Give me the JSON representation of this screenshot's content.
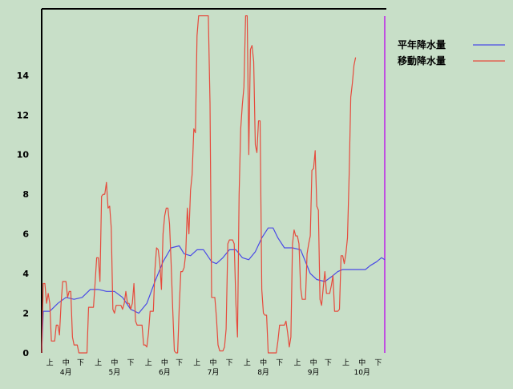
{
  "chart_data": {
    "type": "line",
    "title": "",
    "xlabel": "",
    "ylabel": "",
    "ylim": [
      0,
      17
    ],
    "yticks": [
      0,
      2,
      4,
      6,
      8,
      10,
      12,
      14
    ],
    "xlim": [
      0,
      213
    ],
    "x_tick_labels": [
      {
        "x": 5,
        "label": "上"
      },
      {
        "x": 15,
        "label": "中"
      },
      {
        "x": 24,
        "label": "下"
      },
      {
        "x": 35,
        "label": "上"
      },
      {
        "x": 45,
        "label": "中"
      },
      {
        "x": 55,
        "label": "下"
      },
      {
        "x": 66,
        "label": "上"
      },
      {
        "x": 76,
        "label": "中"
      },
      {
        "x": 85,
        "label": "下"
      },
      {
        "x": 96,
        "label": "上"
      },
      {
        "x": 106,
        "label": "中"
      },
      {
        "x": 116,
        "label": "下"
      },
      {
        "x": 127,
        "label": "上"
      },
      {
        "x": 137,
        "label": "中"
      },
      {
        "x": 147,
        "label": "下"
      },
      {
        "x": 158,
        "label": "上"
      },
      {
        "x": 168,
        "label": "中"
      },
      {
        "x": 177,
        "label": "下"
      },
      {
        "x": 188,
        "label": "上"
      },
      {
        "x": 198,
        "label": "中"
      },
      {
        "x": 208,
        "label": "下"
      }
    ],
    "month_labels": [
      {
        "x": 15,
        "label": "4月"
      },
      {
        "x": 45,
        "label": "5月"
      },
      {
        "x": 76,
        "label": "6月"
      },
      {
        "x": 106,
        "label": "7月"
      },
      {
        "x": 137,
        "label": "8月"
      },
      {
        "x": 168,
        "label": "9月"
      },
      {
        "x": 198,
        "label": "10月"
      }
    ],
    "current_marker_x": 212,
    "legend_position": "top-right",
    "series": [
      {
        "name": "平年降水量",
        "color": "#4a4ae6",
        "points": [
          [
            0,
            0
          ],
          [
            1,
            2.1
          ],
          [
            5,
            2.1
          ],
          [
            10,
            2.5
          ],
          [
            15,
            2.8
          ],
          [
            20,
            2.7
          ],
          [
            25,
            2.8
          ],
          [
            30,
            3.2
          ],
          [
            35,
            3.2
          ],
          [
            40,
            3.1
          ],
          [
            45,
            3.1
          ],
          [
            50,
            2.8
          ],
          [
            55,
            2.2
          ],
          [
            60,
            2.0
          ],
          [
            65,
            2.5
          ],
          [
            70,
            3.6
          ],
          [
            75,
            4.6
          ],
          [
            80,
            5.3
          ],
          [
            85,
            5.4
          ],
          [
            88,
            5.0
          ],
          [
            92,
            4.9
          ],
          [
            96,
            5.2
          ],
          [
            100,
            5.2
          ],
          [
            105,
            4.6
          ],
          [
            108,
            4.5
          ],
          [
            112,
            4.8
          ],
          [
            116,
            5.2
          ],
          [
            120,
            5.2
          ],
          [
            124,
            4.8
          ],
          [
            128,
            4.7
          ],
          [
            132,
            5.1
          ],
          [
            136,
            5.8
          ],
          [
            140,
            6.3
          ],
          [
            143,
            6.3
          ],
          [
            146,
            5.8
          ],
          [
            150,
            5.3
          ],
          [
            155,
            5.3
          ],
          [
            160,
            5.2
          ],
          [
            163,
            4.6
          ],
          [
            166,
            4.0
          ],
          [
            170,
            3.7
          ],
          [
            175,
            3.6
          ],
          [
            180,
            3.9
          ],
          [
            183,
            4.1
          ],
          [
            186,
            4.2
          ],
          [
            195,
            4.2
          ],
          [
            200,
            4.2
          ],
          [
            203,
            4.4
          ],
          [
            207,
            4.6
          ],
          [
            210,
            4.8
          ],
          [
            212,
            4.7
          ]
        ]
      },
      {
        "name": "移動降水量",
        "color": "#e64a3c",
        "points": [
          [
            0,
            0
          ],
          [
            1,
            3.5
          ],
          [
            2,
            3.5
          ],
          [
            3,
            2.5
          ],
          [
            4,
            3.0
          ],
          [
            5,
            2.5
          ],
          [
            6,
            0.6
          ],
          [
            8,
            0.6
          ],
          [
            9,
            1.4
          ],
          [
            10,
            1.4
          ],
          [
            11,
            0.9
          ],
          [
            12,
            2.5
          ],
          [
            13,
            3.6
          ],
          [
            15,
            3.6
          ],
          [
            16,
            2.8
          ],
          [
            17,
            3.1
          ],
          [
            18,
            3.1
          ],
          [
            19,
            0.8
          ],
          [
            20,
            0.4
          ],
          [
            22,
            0.4
          ],
          [
            23,
            0
          ],
          [
            28,
            0
          ],
          [
            29,
            2.3
          ],
          [
            32,
            2.3
          ],
          [
            33,
            3.5
          ],
          [
            34,
            4.8
          ],
          [
            35,
            4.8
          ],
          [
            36,
            3.6
          ],
          [
            37,
            7.9
          ],
          [
            38,
            8.0
          ],
          [
            39,
            8.0
          ],
          [
            40,
            8.6
          ],
          [
            41,
            7.3
          ],
          [
            42,
            7.4
          ],
          [
            43,
            6.3
          ],
          [
            44,
            2.2
          ],
          [
            45,
            2.0
          ],
          [
            46,
            2.4
          ],
          [
            49,
            2.4
          ],
          [
            50,
            2.2
          ],
          [
            51,
            2.5
          ],
          [
            52,
            3.1
          ],
          [
            53,
            2.5
          ],
          [
            54,
            2.5
          ],
          [
            55,
            2.2
          ],
          [
            56,
            2.5
          ],
          [
            57,
            3.5
          ],
          [
            58,
            1.6
          ],
          [
            59,
            1.4
          ],
          [
            62,
            1.4
          ],
          [
            63,
            0.4
          ],
          [
            64,
            0.4
          ],
          [
            65,
            0.3
          ],
          [
            66,
            1.0
          ],
          [
            67,
            2.1
          ],
          [
            69,
            2.1
          ],
          [
            70,
            4.2
          ],
          [
            71,
            5.3
          ],
          [
            72,
            5.2
          ],
          [
            73,
            4.5
          ],
          [
            74,
            3.2
          ],
          [
            75,
            6.0
          ],
          [
            76,
            6.9
          ],
          [
            77,
            7.3
          ],
          [
            78,
            7.3
          ],
          [
            79,
            6.5
          ],
          [
            80,
            4.5
          ],
          [
            81,
            2.2
          ],
          [
            82,
            0.1
          ],
          [
            83,
            0
          ],
          [
            84,
            0
          ],
          [
            85,
            2.3
          ],
          [
            86,
            4.1
          ],
          [
            87,
            4.1
          ],
          [
            88,
            4.3
          ],
          [
            89,
            5.0
          ],
          [
            90,
            7.3
          ],
          [
            91,
            6.0
          ],
          [
            92,
            8.2
          ],
          [
            93,
            9.0
          ],
          [
            94,
            11.3
          ],
          [
            95,
            11.1
          ],
          [
            96,
            16.0
          ],
          [
            97,
            17.0
          ],
          [
            98,
            17.0
          ],
          [
            99,
            17.0
          ],
          [
            100,
            17.0
          ],
          [
            101,
            17.0
          ],
          [
            102,
            17.0
          ],
          [
            103,
            17.0
          ],
          [
            104,
            12.6
          ],
          [
            105,
            2.8
          ],
          [
            107,
            2.8
          ],
          [
            108,
            1.8
          ],
          [
            109,
            0.4
          ],
          [
            110,
            0.1
          ],
          [
            112,
            0.1
          ],
          [
            113,
            0.3
          ],
          [
            114,
            1.2
          ],
          [
            115,
            5.5
          ],
          [
            116,
            5.7
          ],
          [
            117,
            5.7
          ],
          [
            118,
            5.7
          ],
          [
            119,
            5.5
          ],
          [
            120,
            2.5
          ],
          [
            121,
            0.8
          ],
          [
            122,
            8.0
          ],
          [
            123,
            11.3
          ],
          [
            124,
            12.5
          ],
          [
            125,
            13.4
          ],
          [
            126,
            17.0
          ],
          [
            127,
            17.0
          ],
          [
            128,
            10.0
          ],
          [
            129,
            15.3
          ],
          [
            130,
            15.5
          ],
          [
            131,
            14.7
          ],
          [
            132,
            10.5
          ],
          [
            133,
            10.1
          ],
          [
            134,
            11.7
          ],
          [
            135,
            11.7
          ],
          [
            136,
            3.2
          ],
          [
            137,
            2.0
          ],
          [
            138,
            1.9
          ],
          [
            139,
            1.9
          ],
          [
            140,
            0
          ],
          [
            145,
            0
          ],
          [
            146,
            0.6
          ],
          [
            147,
            1.4
          ],
          [
            150,
            1.4
          ],
          [
            151,
            1.6
          ],
          [
            152,
            1.0
          ],
          [
            153,
            0.3
          ],
          [
            154,
            0.8
          ],
          [
            155,
            5.5
          ],
          [
            156,
            6.2
          ],
          [
            157,
            5.9
          ],
          [
            158,
            5.9
          ],
          [
            159,
            5.5
          ],
          [
            160,
            3.3
          ],
          [
            161,
            2.7
          ],
          [
            163,
            2.7
          ],
          [
            164,
            5.0
          ],
          [
            165,
            5.5
          ],
          [
            166,
            5.9
          ],
          [
            167,
            9.2
          ],
          [
            168,
            9.3
          ],
          [
            169,
            10.2
          ],
          [
            170,
            7.4
          ],
          [
            171,
            7.2
          ],
          [
            172,
            2.7
          ],
          [
            173,
            2.4
          ],
          [
            174,
            3.3
          ],
          [
            175,
            4.1
          ],
          [
            176,
            3.0
          ],
          [
            178,
            3.0
          ],
          [
            179,
            3.4
          ],
          [
            180,
            3.9
          ],
          [
            181,
            2.1
          ],
          [
            183,
            2.1
          ],
          [
            184,
            2.2
          ],
          [
            185,
            4.9
          ],
          [
            186,
            4.9
          ],
          [
            187,
            4.5
          ],
          [
            188,
            5.0
          ],
          [
            189,
            5.8
          ],
          [
            190,
            9.0
          ],
          [
            191,
            12.9
          ],
          [
            192,
            13.6
          ],
          [
            193,
            14.5
          ],
          [
            194,
            14.9
          ]
        ]
      }
    ]
  }
}
